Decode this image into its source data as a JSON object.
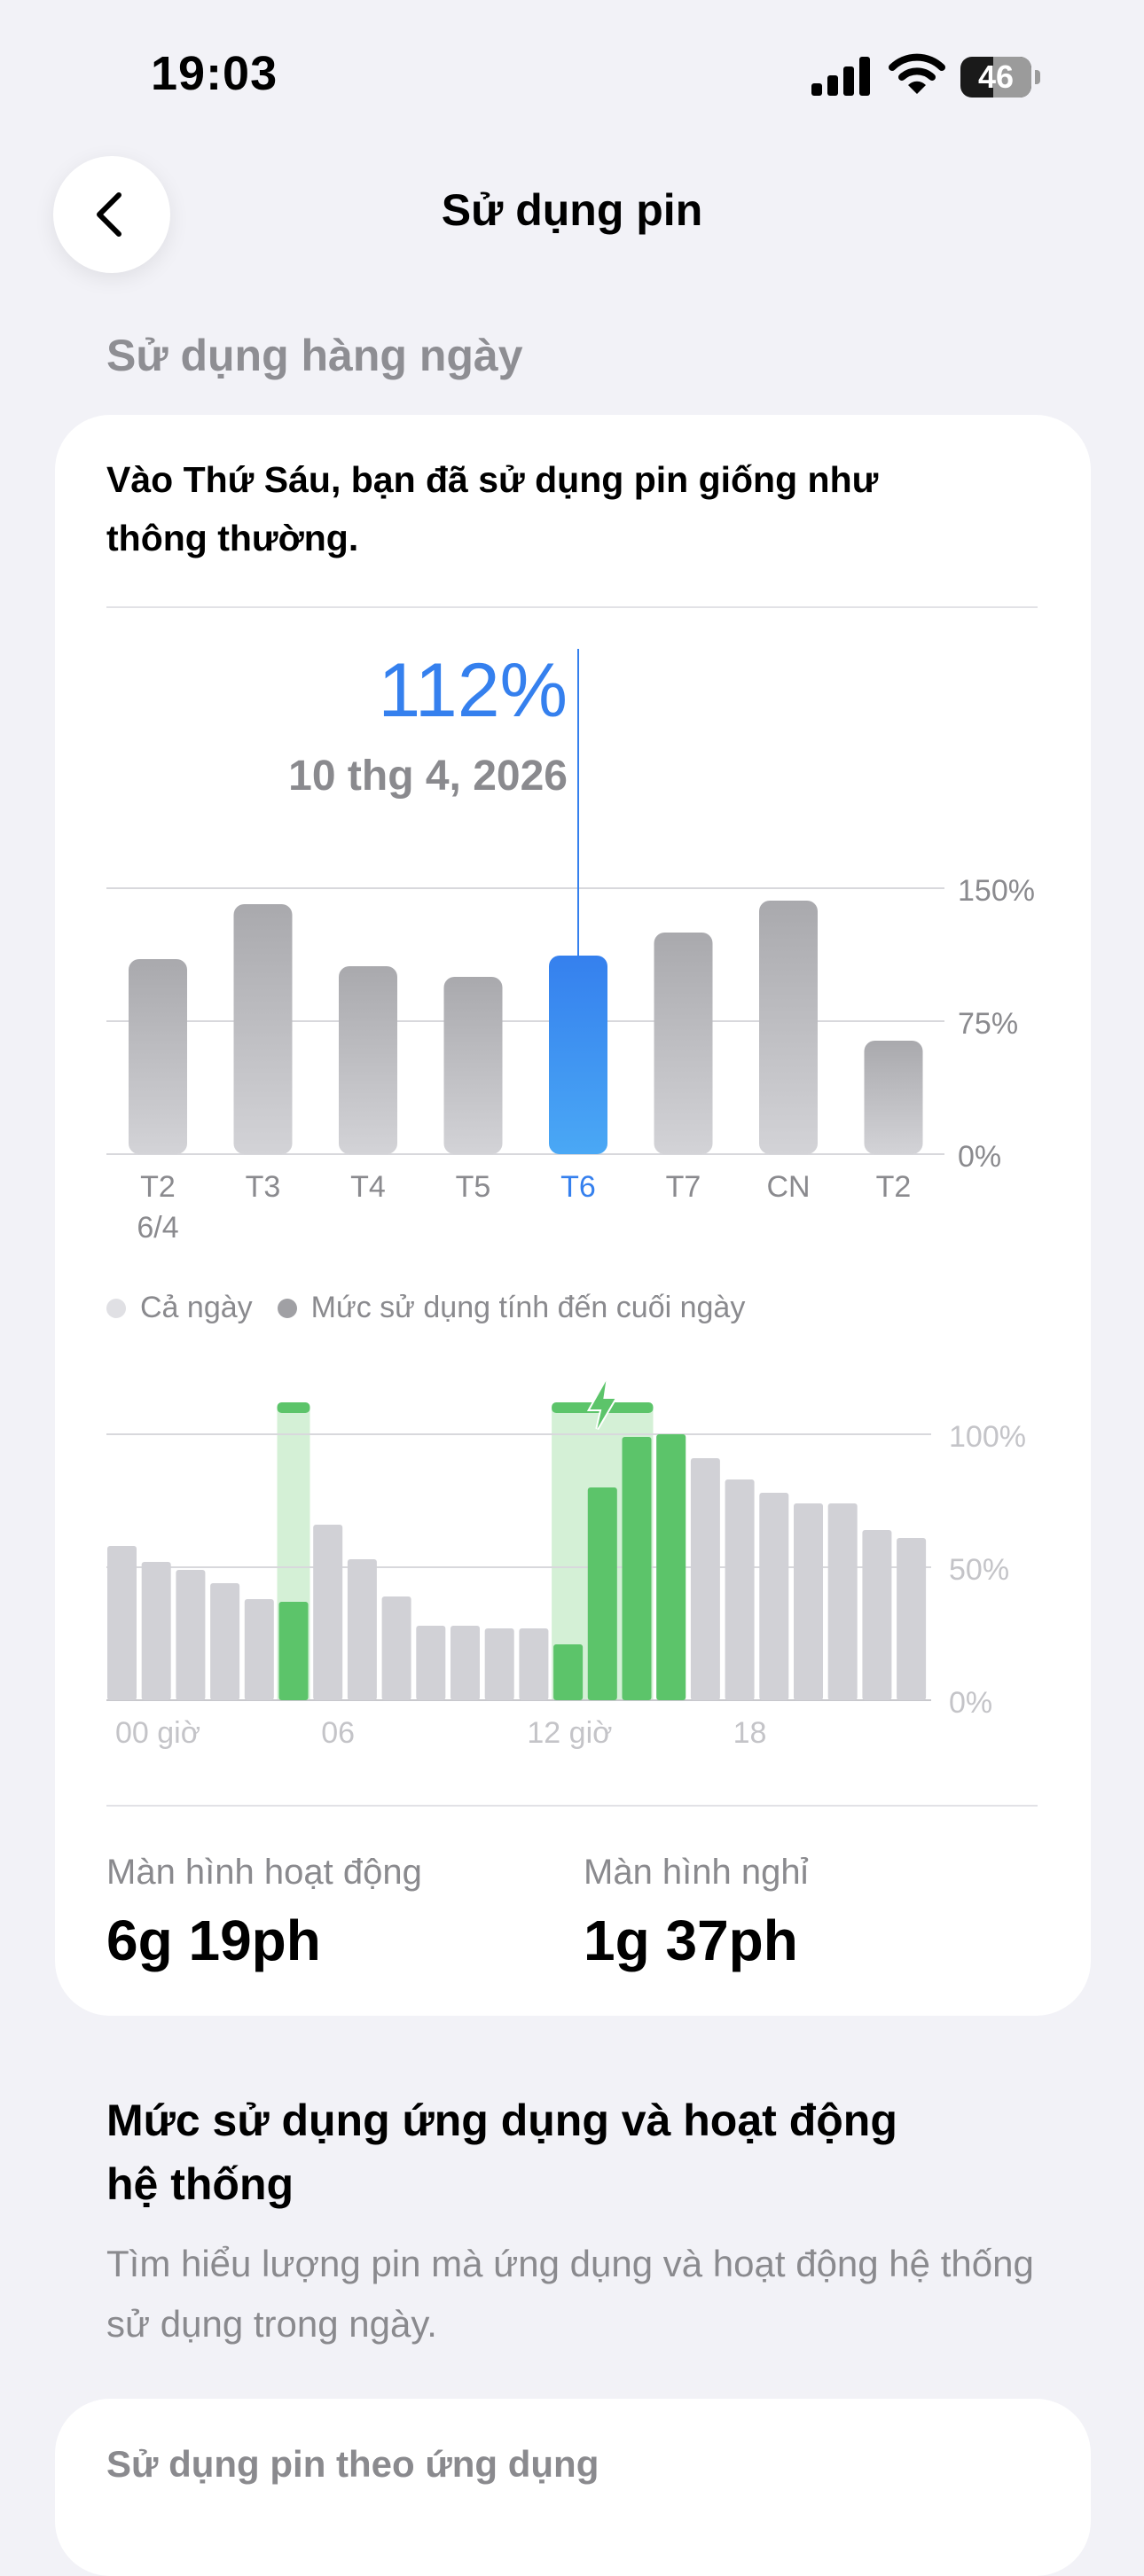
{
  "status_bar": {
    "time": "19:03",
    "battery_level": "46",
    "icons": [
      "cellular-signal-icon",
      "wifi-icon",
      "battery-icon"
    ]
  },
  "nav": {
    "back_icon": "chevron-left-icon",
    "title": "Sử dụng pin"
  },
  "daily_usage": {
    "section_header": "Sử dụng hàng ngày",
    "summary": "Vào Thứ Sáu, bạn đã sử dụng pin giống như thông thường.",
    "selected_value": "112%",
    "selected_date": "10 thg 4, 2026"
  },
  "legend": {
    "all_day": "Cả ngày",
    "end_of_day": "Mức sử dụng tính đến cuối ngày"
  },
  "screen_stats": {
    "active_label": "Màn hình hoạt động",
    "active_value": "6g 19ph",
    "idle_label": "Màn hình nghỉ",
    "idle_value": "1g 37ph"
  },
  "app_usage": {
    "title": "Mức sử dụng ứng dụng và hoạt động hệ thống",
    "description": "Tìm hiểu lượng pin mà ứng dụng và hoạt động hệ thống sử dụng trong ngày.",
    "card_title": "Sử dụng pin theo ứng dụng"
  },
  "chart_data": [
    {
      "type": "bar",
      "categories": [
        "T2",
        "T3",
        "T4",
        "T5",
        "T6",
        "T7",
        "CN",
        "T2"
      ],
      "sub_labels": [
        "6/4",
        "",
        "",
        "",
        "",
        "",
        "",
        ""
      ],
      "values": [
        110,
        141,
        106,
        100,
        112,
        125,
        143,
        64
      ],
      "selected_index": 4,
      "ylim": [
        0,
        150
      ],
      "yticks": [
        "0%",
        "75%",
        "150%"
      ],
      "grid": true,
      "colors": {
        "default": "#B0B0B4",
        "selected": "#3580EE"
      }
    },
    {
      "type": "bar",
      "categories": [
        "00 giờ",
        "06",
        "12 giờ",
        "18"
      ],
      "hourly_all_day": [
        58,
        52,
        49,
        44,
        38,
        37,
        66,
        53,
        39,
        28,
        28,
        27,
        27,
        21,
        80,
        99,
        100,
        91,
        83,
        78,
        74,
        74,
        64,
        61
      ],
      "charging_levels": [
        null,
        null,
        null,
        null,
        null,
        37,
        null,
        null,
        null,
        null,
        null,
        null,
        null,
        21,
        80,
        99,
        100,
        null,
        null,
        null,
        null,
        null,
        null,
        null
      ],
      "charging_hours": [
        5,
        13,
        14,
        15
      ],
      "ylim": [
        0,
        100
      ],
      "yticks": [
        "0%",
        "50%",
        "100%"
      ],
      "grid": true,
      "colors": {
        "default": "#D1D1D6",
        "charging": "#5CC46A",
        "charging_band": "#D4F0D6"
      }
    }
  ]
}
